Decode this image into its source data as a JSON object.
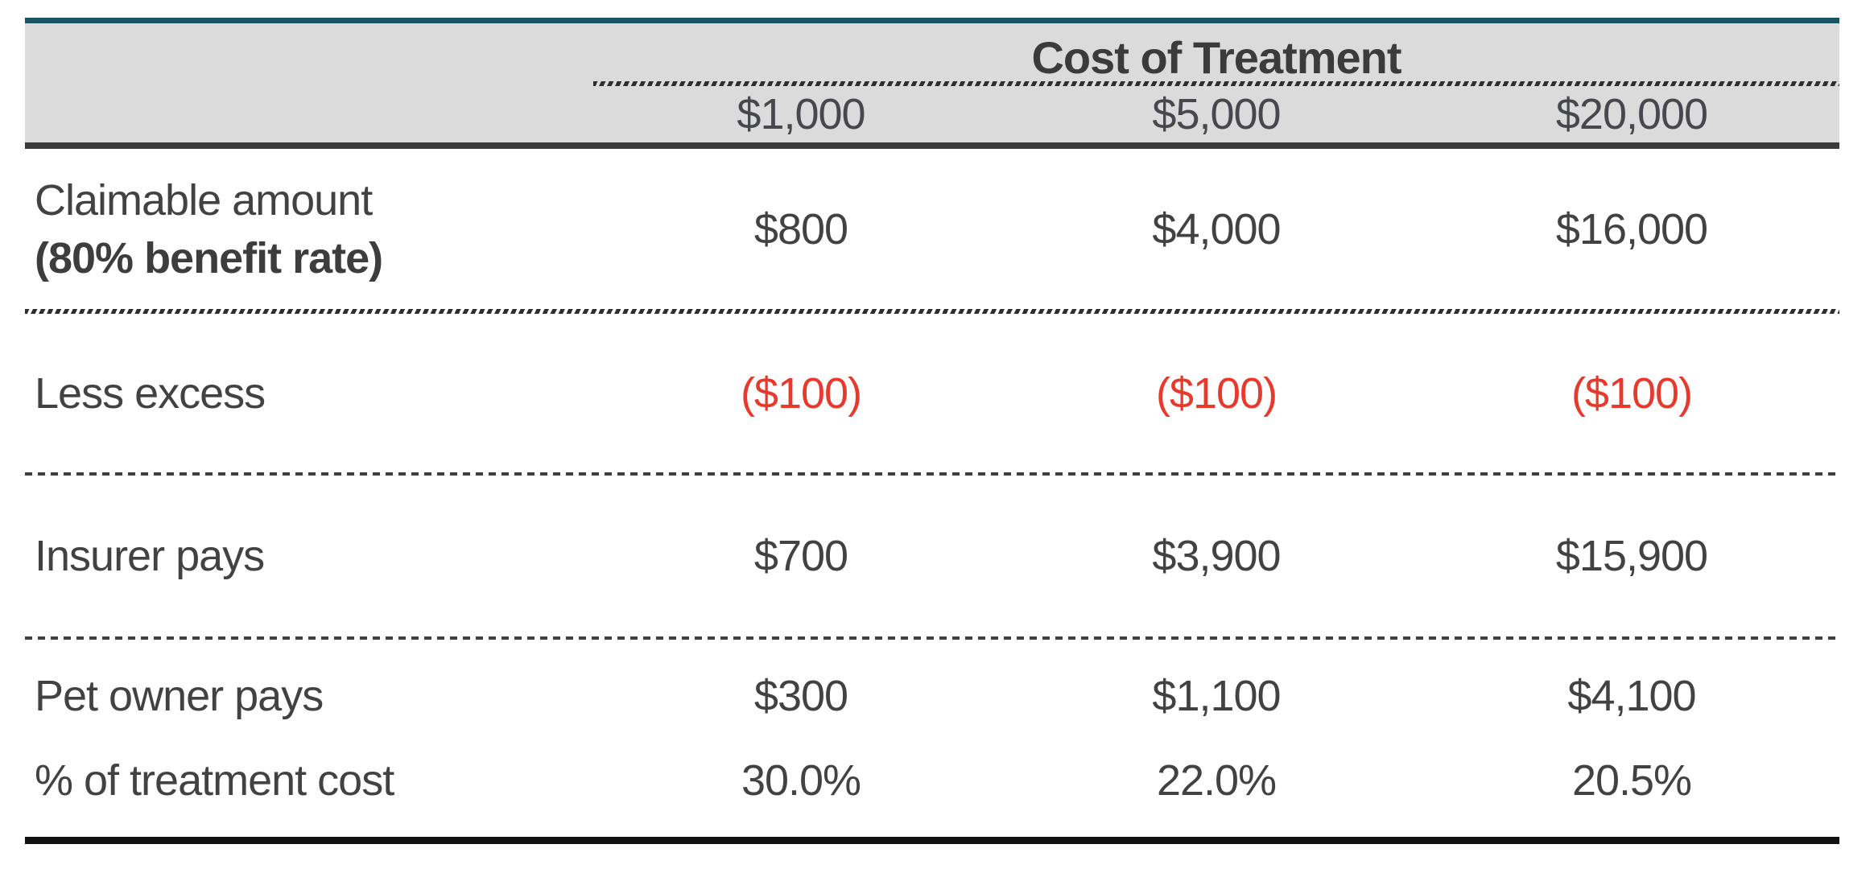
{
  "table": {
    "header": {
      "title": "Cost of Treatment",
      "columns": [
        "$1,000",
        "$5,000",
        "$20,000"
      ]
    },
    "rows": [
      {
        "label_line1": "Claimable amount",
        "label_line2": "(80% benefit rate)",
        "values": [
          "$800",
          "$4,000",
          "$16,000"
        ]
      },
      {
        "label": "Less excess",
        "values": [
          "($100)",
          "($100)",
          "($100)"
        ]
      },
      {
        "label": "Insurer pays",
        "values": [
          "$700",
          "$3,900",
          "$15,900"
        ]
      },
      {
        "label": "Pet owner pays",
        "values": [
          "$300",
          "$1,100",
          "$4,100"
        ]
      },
      {
        "label": "% of treatment cost",
        "values": [
          "30.0%",
          "22.0%",
          "20.5%"
        ]
      }
    ],
    "colors": {
      "accent_teal": "#1a5361",
      "header_gray": "#dbdbdb",
      "divider_dark": "#3b3b3b",
      "text": "#424242",
      "negative_red": "#e8392d",
      "bottom_line": "#111111"
    }
  },
  "chart_data": {
    "type": "table",
    "title": "Cost of Treatment",
    "categories": [
      "$1,000",
      "$5,000",
      "$20,000"
    ],
    "series": [
      {
        "name": "Claimable amount (80% benefit rate)",
        "values": [
          800,
          4000,
          16000
        ]
      },
      {
        "name": "Less excess",
        "values": [
          -100,
          -100,
          -100
        ]
      },
      {
        "name": "Insurer pays",
        "values": [
          700,
          3900,
          15900
        ]
      },
      {
        "name": "Pet owner pays",
        "values": [
          300,
          1100,
          4100
        ]
      },
      {
        "name": "% of treatment cost",
        "values": [
          30.0,
          22.0,
          20.5
        ]
      }
    ]
  }
}
